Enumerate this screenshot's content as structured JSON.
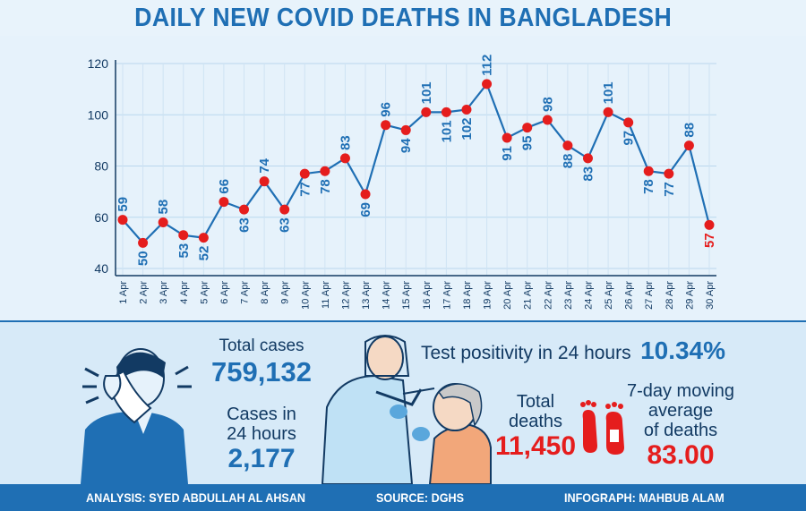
{
  "title": "DAILY NEW COVID DEATHS IN BANGLADESH",
  "chart_data": {
    "type": "line",
    "categories": [
      "1 Apr",
      "2 Apr",
      "3 Apr",
      "4 Apr",
      "5 Apr",
      "6 Apr",
      "7 Apr",
      "8 Apr",
      "9 Apr",
      "10 Apr",
      "11 Apr",
      "12 Apr",
      "13 Apr",
      "14 Apr",
      "15 Apr",
      "16 Apr",
      "17 Apr",
      "18 Apr",
      "19 Apr",
      "20 Apr",
      "21 Apr",
      "22 Apr",
      "23 Apr",
      "24 Apr",
      "25 Apr",
      "26 Apr",
      "27 Apr",
      "28 Apr",
      "29 Apr",
      "30 Apr"
    ],
    "values": [
      59,
      50,
      58,
      53,
      52,
      66,
      63,
      74,
      63,
      77,
      78,
      83,
      69,
      96,
      94,
      101,
      101,
      102,
      112,
      91,
      95,
      98,
      88,
      83,
      101,
      97,
      78,
      77,
      88,
      57
    ],
    "ylim": [
      40,
      120
    ],
    "yticks": [
      "40",
      "60",
      "80",
      "100",
      "120"
    ],
    "grid": true,
    "line_color": "#1f6fb4",
    "marker_color": "#e51d1d",
    "highlight_color": "#e51d1d"
  },
  "stats": {
    "total_cases_label": "Total cases",
    "total_cases_value": "759,132",
    "cases_24h_label_1": "Cases in",
    "cases_24h_label_2": "24 hours",
    "cases_24h_value": "2,177",
    "positivity_label": "Test positivity in 24 hours",
    "positivity_value": "10.34%",
    "total_deaths_label_1": "Total",
    "total_deaths_label_2": "deaths",
    "total_deaths_value": "11,450",
    "moving_avg_label_1": "7-day moving",
    "moving_avg_label_2": "average",
    "moving_avg_label_3": "of deaths",
    "moving_avg_value": "83.00"
  },
  "footer": {
    "analysis": "ANALYSIS: SYED ABDULLAH AL AHSAN",
    "source": "SOURCE: DGHS",
    "infograph": "INFOGRAPH: MAHBUB ALAM"
  },
  "colors": {
    "accent": "#1f6fb4",
    "alert": "#e51d1d",
    "panel": "#e6f2fb"
  }
}
